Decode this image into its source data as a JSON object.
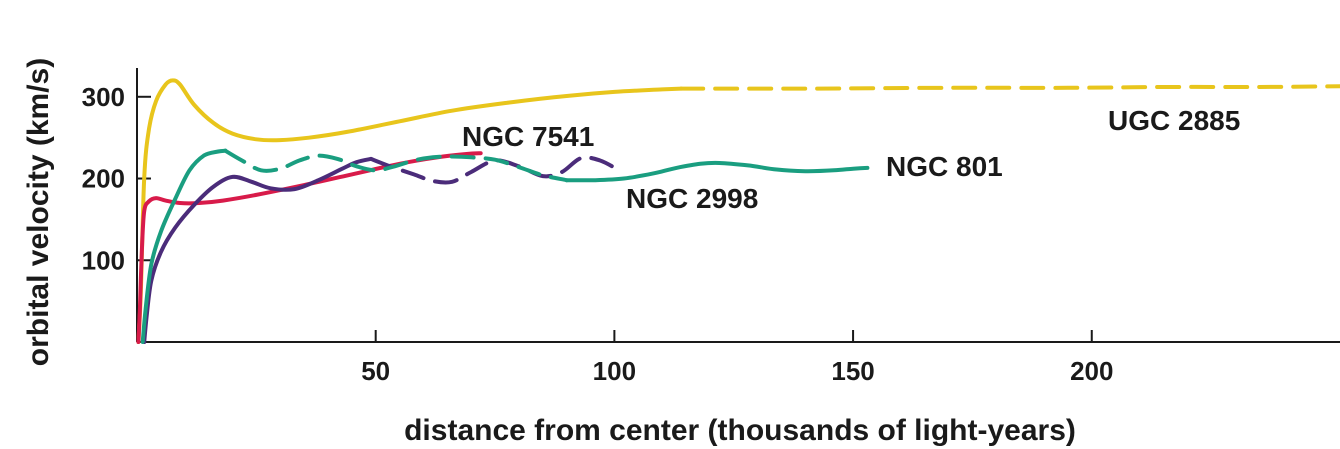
{
  "chart_data": {
    "type": "line",
    "title": "",
    "xlabel": "distance from center (thousands of light-years)",
    "ylabel": "orbital velocity (km/s)",
    "xlim": [
      0,
      252
    ],
    "ylim": [
      0,
      345
    ],
    "x_ticks": [
      50,
      100,
      150,
      200
    ],
    "y_ticks": [
      100,
      200,
      300
    ],
    "x_tick_labels": [
      "50",
      "100",
      "150",
      "200"
    ],
    "y_tick_labels": [
      "100",
      "200",
      "300"
    ],
    "grid": false,
    "series": [
      {
        "name": "UGC 2885",
        "color": "#e8c51c",
        "points": [
          [
            0.3,
            0
          ],
          [
            0.8,
            60
          ],
          [
            1.5,
            200
          ],
          [
            2.5,
            260
          ],
          [
            4,
            295
          ],
          [
            6,
            315
          ],
          [
            7.5,
            320
          ],
          [
            9,
            315
          ],
          [
            12,
            290
          ],
          [
            16,
            268
          ],
          [
            20,
            255
          ],
          [
            25,
            248
          ],
          [
            30,
            247
          ],
          [
            36,
            250
          ],
          [
            44,
            257
          ],
          [
            55,
            270
          ],
          [
            66,
            283
          ],
          [
            78,
            293
          ],
          [
            90,
            301
          ],
          [
            100,
            306
          ],
          [
            110,
            309
          ],
          [
            114,
            310
          ]
        ],
        "dashed_points": [
          [
            114,
            310
          ],
          [
            140,
            310
          ],
          [
            170,
            311
          ],
          [
            195,
            311
          ],
          [
            215,
            312
          ],
          [
            235,
            312
          ],
          [
            252,
            313
          ]
        ],
        "label_position": "right"
      },
      {
        "name": "NGC 7541",
        "color": "#d81b4a",
        "points": [
          [
            0.3,
            0
          ],
          [
            0.6,
            40
          ],
          [
            1,
            110
          ],
          [
            1.5,
            160
          ],
          [
            2.5,
            172
          ],
          [
            4,
            176
          ],
          [
            6,
            173
          ],
          [
            9,
            170
          ],
          [
            13,
            170
          ],
          [
            18,
            173
          ],
          [
            25,
            180
          ],
          [
            35,
            192
          ],
          [
            45,
            205
          ],
          [
            55,
            218
          ],
          [
            63,
            226
          ],
          [
            69,
            230
          ],
          [
            72,
            231
          ]
        ],
        "dashed_points": [],
        "label_position": "above"
      },
      {
        "name": "NGC 2998",
        "color": "#4b2c7a",
        "points": [
          [
            1.5,
            0
          ],
          [
            2,
            30
          ],
          [
            3,
            75
          ],
          [
            5,
            110
          ],
          [
            8,
            140
          ],
          [
            12,
            168
          ],
          [
            16,
            190
          ],
          [
            20,
            202
          ],
          [
            24,
            196
          ],
          [
            28,
            188
          ],
          [
            33,
            187
          ],
          [
            38,
            198
          ],
          [
            43,
            212
          ],
          [
            46,
            220
          ],
          [
            49,
            224
          ]
        ],
        "dashed_points": [
          [
            49,
            224
          ],
          [
            53,
            215
          ],
          [
            58,
            205
          ],
          [
            62,
            197
          ],
          [
            66,
            196
          ],
          [
            70,
            208
          ],
          [
            75,
            222
          ],
          [
            80,
            215
          ],
          [
            85,
            203
          ],
          [
            89,
            208
          ],
          [
            93,
            225
          ],
          [
            97,
            222
          ],
          [
            101,
            210
          ]
        ],
        "label_position": "below"
      },
      {
        "name": "NGC 801",
        "color": "#1a9e80",
        "points": [
          [
            1.2,
            0
          ],
          [
            1.8,
            40
          ],
          [
            3,
            95
          ],
          [
            5,
            135
          ],
          [
            8,
            175
          ],
          [
            11,
            210
          ],
          [
            14,
            228
          ],
          [
            17,
            233
          ],
          [
            18.5,
            234
          ]
        ],
        "dashed_points": [
          [
            18.5,
            234
          ],
          [
            22,
            222
          ],
          [
            26,
            210
          ],
          [
            30,
            212
          ],
          [
            34,
            222
          ],
          [
            38,
            228
          ],
          [
            42,
            224
          ],
          [
            46,
            215
          ],
          [
            50,
            210
          ],
          [
            54,
            215
          ],
          [
            58,
            222
          ],
          [
            62,
            226
          ],
          [
            66,
            227
          ],
          [
            70,
            226
          ],
          [
            75,
            223
          ],
          [
            80,
            214
          ],
          [
            85,
            204
          ],
          [
            90,
            198
          ]
        ],
        "more_points": [
          [
            90,
            198
          ],
          [
            96,
            198
          ],
          [
            102,
            200
          ],
          [
            108,
            206
          ],
          [
            113,
            213
          ],
          [
            118,
            218
          ],
          [
            122,
            219
          ],
          [
            128,
            216
          ],
          [
            134,
            211
          ],
          [
            140,
            209
          ],
          [
            146,
            210
          ],
          [
            150,
            212
          ],
          [
            153,
            213
          ]
        ],
        "label_position": "right"
      }
    ]
  }
}
